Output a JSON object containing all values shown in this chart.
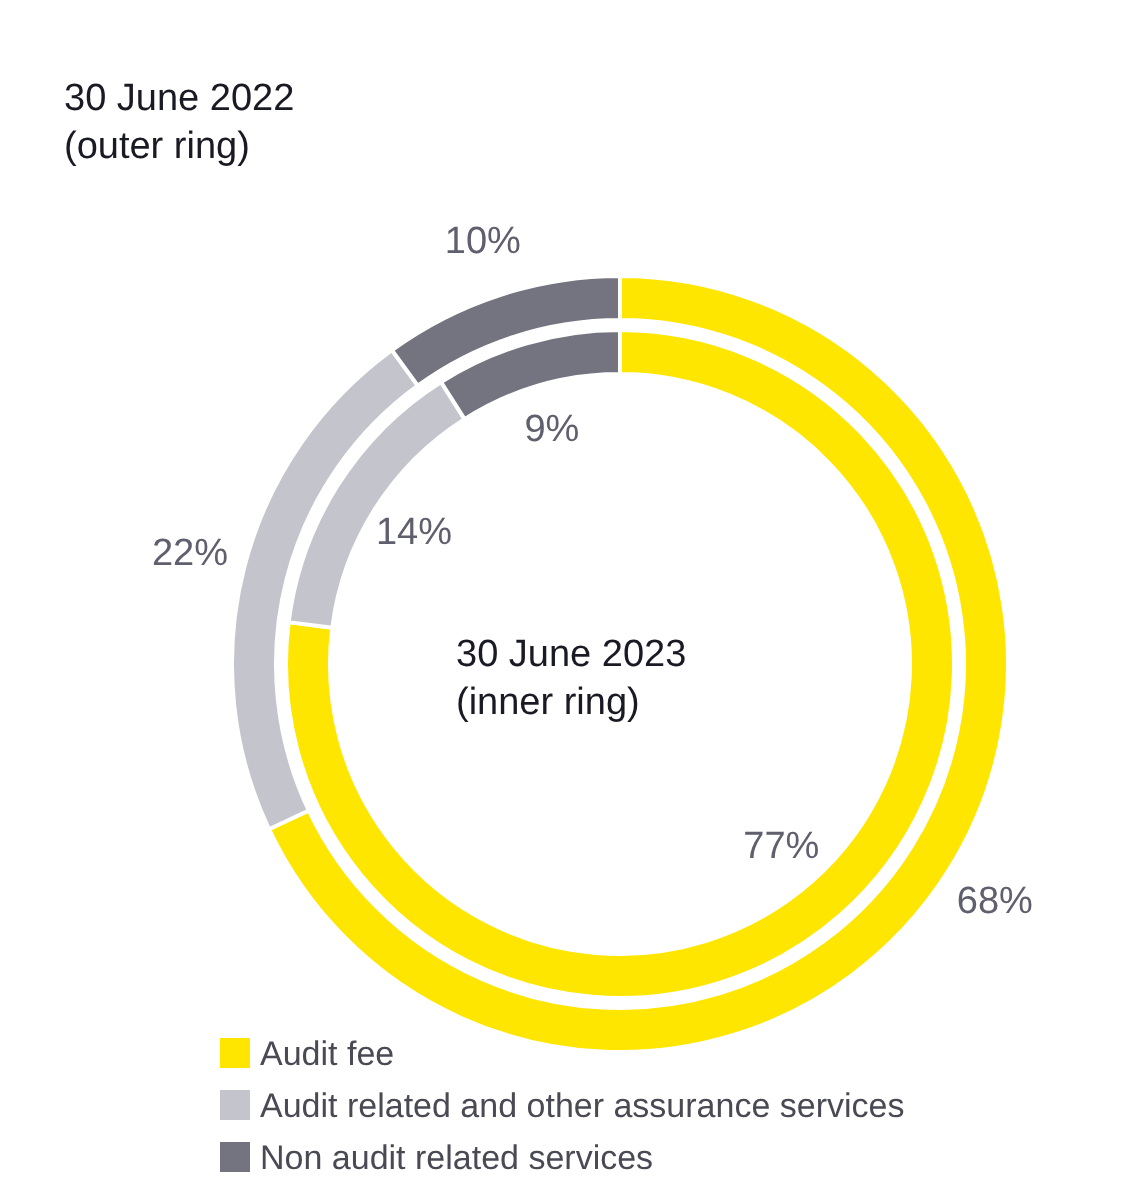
{
  "chart_data": [
    {
      "type": "donut",
      "title": "30 June 2022\n(outer ring)",
      "categories": [
        "Audit fee",
        "Audit related and other assurance services",
        "Non audit related services"
      ],
      "colors": [
        "#ffe600",
        "#c4c4cd",
        "#747480"
      ],
      "values": [
        68,
        22,
        10
      ],
      "value_labels": [
        "68%",
        "22%",
        "10%"
      ],
      "legend": "bottom"
    },
    {
      "type": "donut",
      "title": "30 June 2023\n(inner ring)",
      "categories": [
        null,
        null,
        null
      ],
      "colors": [
        "#ffe600",
        "#c4c4cd",
        "#747480"
      ],
      "values": [
        77,
        14,
        9
      ],
      "value_labels": [
        "77%",
        "14%",
        "9%"
      ]
    }
  ]
}
